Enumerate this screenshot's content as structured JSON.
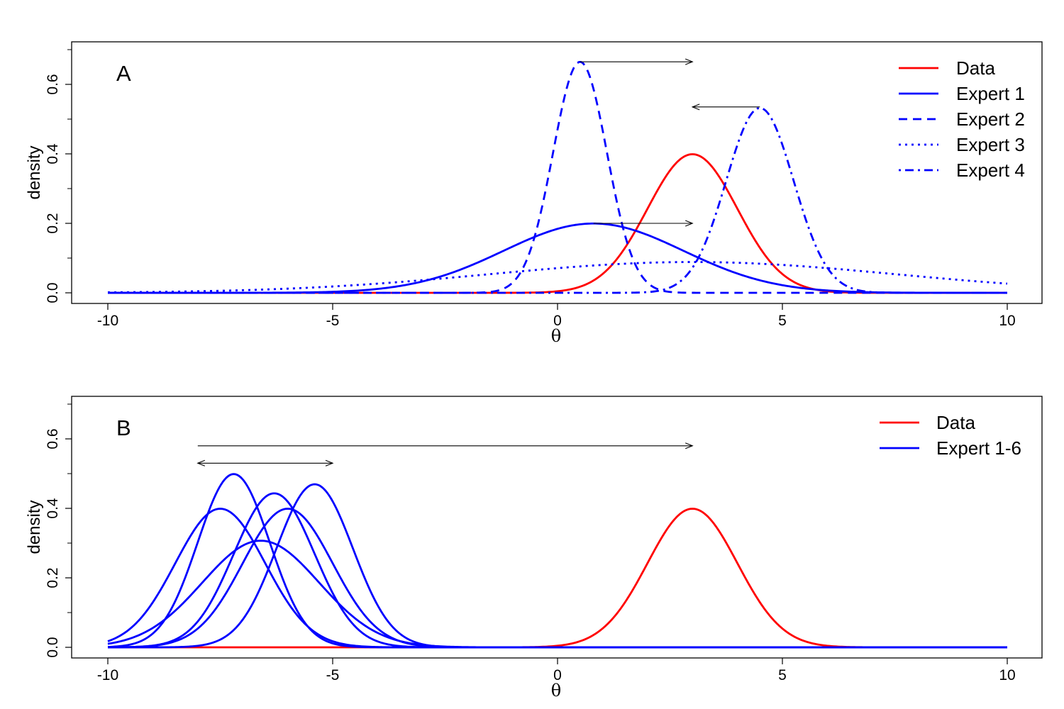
{
  "colors": {
    "data": "#ff0000",
    "expert": "#0000ff",
    "axis": "#000000"
  },
  "chart_data": [
    {
      "type": "line",
      "panel_label": "A",
      "xlabel": "θ",
      "ylabel": "density",
      "xlim": [
        -10,
        10
      ],
      "ylim": [
        0,
        0.72
      ],
      "xticks": [
        -10,
        -5,
        0,
        5,
        10
      ],
      "xtick_labels": [
        "-10",
        "-5",
        "0",
        "5",
        "10"
      ],
      "yticks": [
        0,
        0.2,
        0.4,
        0.6
      ],
      "ytick_labels": [
        "0.0",
        "0.2",
        "0.4",
        "0.6"
      ],
      "legend_position": "top-right",
      "series": [
        {
          "name": "Data",
          "distribution": "normal",
          "mean": 3.0,
          "sd": 1.0,
          "color": "red",
          "linestyle": "solid"
        },
        {
          "name": "Expert 1",
          "distribution": "normal",
          "mean": 0.8,
          "sd": 2.0,
          "color": "blue",
          "linestyle": "solid"
        },
        {
          "name": "Expert 2",
          "distribution": "normal",
          "mean": 0.5,
          "sd": 0.6,
          "color": "blue",
          "linestyle": "dashed"
        },
        {
          "name": "Expert 3",
          "distribution": "normal",
          "mean": 3.0,
          "sd": 4.5,
          "color": "blue",
          "linestyle": "dotted"
        },
        {
          "name": "Expert 4",
          "distribution": "normal",
          "mean": 4.5,
          "sd": 0.75,
          "color": "blue",
          "linestyle": "dotdash"
        }
      ],
      "arrows": [
        {
          "from": [
            0.5,
            0.665
          ],
          "to": [
            3.0,
            0.665
          ],
          "heads": "end"
        },
        {
          "from": [
            4.5,
            0.535
          ],
          "to": [
            3.0,
            0.535
          ],
          "heads": "end"
        },
        {
          "from": [
            0.8,
            0.2
          ],
          "to": [
            3.0,
            0.2
          ],
          "heads": "end"
        }
      ]
    },
    {
      "type": "line",
      "panel_label": "B",
      "xlabel": "θ",
      "ylabel": "density",
      "xlim": [
        -10,
        10
      ],
      "ylim": [
        0,
        0.72
      ],
      "xticks": [
        -10,
        -5,
        0,
        5,
        10
      ],
      "xtick_labels": [
        "-10",
        "-5",
        "0",
        "5",
        "10"
      ],
      "yticks": [
        0,
        0.2,
        0.4,
        0.6
      ],
      "ytick_labels": [
        "0.0",
        "0.2",
        "0.4",
        "0.6"
      ],
      "legend_position": "top-right",
      "legend": [
        {
          "name": "Data",
          "color": "red"
        },
        {
          "name": "Expert 1-6",
          "color": "blue"
        }
      ],
      "series": [
        {
          "name": "Data",
          "distribution": "normal",
          "mean": 3.0,
          "sd": 1.0,
          "color": "red",
          "linestyle": "solid"
        },
        {
          "distribution": "normal",
          "mean": -7.5,
          "sd": 1.0,
          "color": "blue",
          "linestyle": "solid"
        },
        {
          "distribution": "normal",
          "mean": -7.2,
          "sd": 0.8,
          "color": "blue",
          "linestyle": "solid"
        },
        {
          "distribution": "normal",
          "mean": -6.6,
          "sd": 1.3,
          "color": "blue",
          "linestyle": "solid"
        },
        {
          "distribution": "normal",
          "mean": -6.3,
          "sd": 0.9,
          "color": "blue",
          "linestyle": "solid"
        },
        {
          "distribution": "normal",
          "mean": -6.0,
          "sd": 1.0,
          "color": "blue",
          "linestyle": "solid"
        },
        {
          "distribution": "normal",
          "mean": -5.4,
          "sd": 0.85,
          "color": "blue",
          "linestyle": "solid"
        }
      ],
      "arrows": [
        {
          "from": [
            -8.0,
            0.58
          ],
          "to": [
            3.0,
            0.58
          ],
          "heads": "end"
        },
        {
          "from": [
            -8.0,
            0.53
          ],
          "to": [
            -5.0,
            0.53
          ],
          "heads": "both"
        }
      ]
    }
  ]
}
